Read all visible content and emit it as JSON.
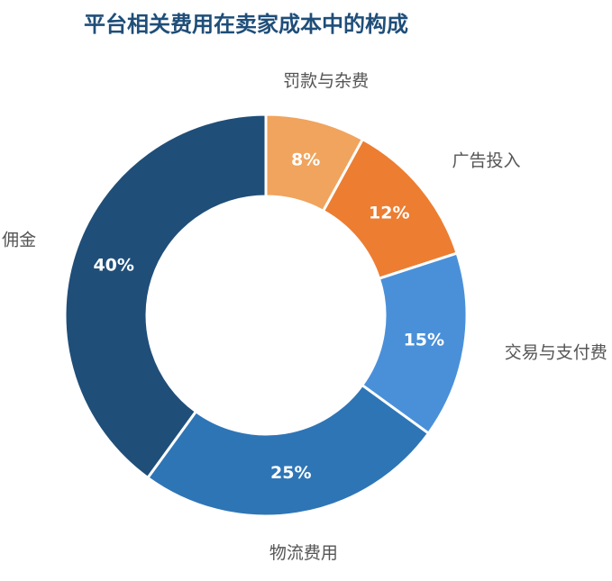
{
  "chart_data": {
    "type": "donut",
    "title": "平台相关费用在卖家成本中的构成",
    "categories": [
      "罚款与杂费",
      "广告投入",
      "交易与支付费",
      "物流费用",
      "佣金"
    ],
    "values": [
      8,
      12,
      15,
      25,
      40
    ],
    "value_labels": [
      "8%",
      "12%",
      "15%",
      "25%",
      "40%"
    ],
    "colors": [
      "#F0A45D",
      "#ED7D31",
      "#4A90D9",
      "#2E75B6",
      "#1F4E79"
    ]
  }
}
